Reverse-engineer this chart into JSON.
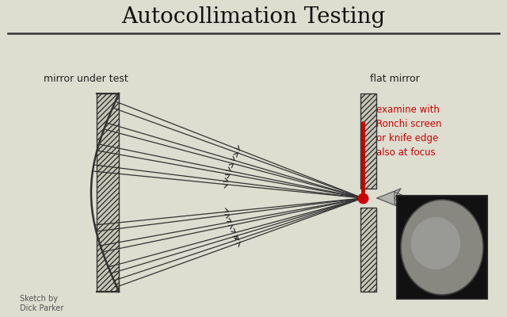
{
  "title": "Autocollimation Testing",
  "bg_color": "#ddddd0",
  "label_mirror_under_test": "mirror under test",
  "label_flat_mirror": "flat mirror",
  "label_examine": "examine with\nRonchi screen\nor knife edge\nalso at focus",
  "label_sketch": "Sketch by\nDick Parker",
  "line_color": "#333333",
  "red_color": "#cc0000",
  "examine_color": "#cc0000",
  "hatch_pattern": "/////"
}
